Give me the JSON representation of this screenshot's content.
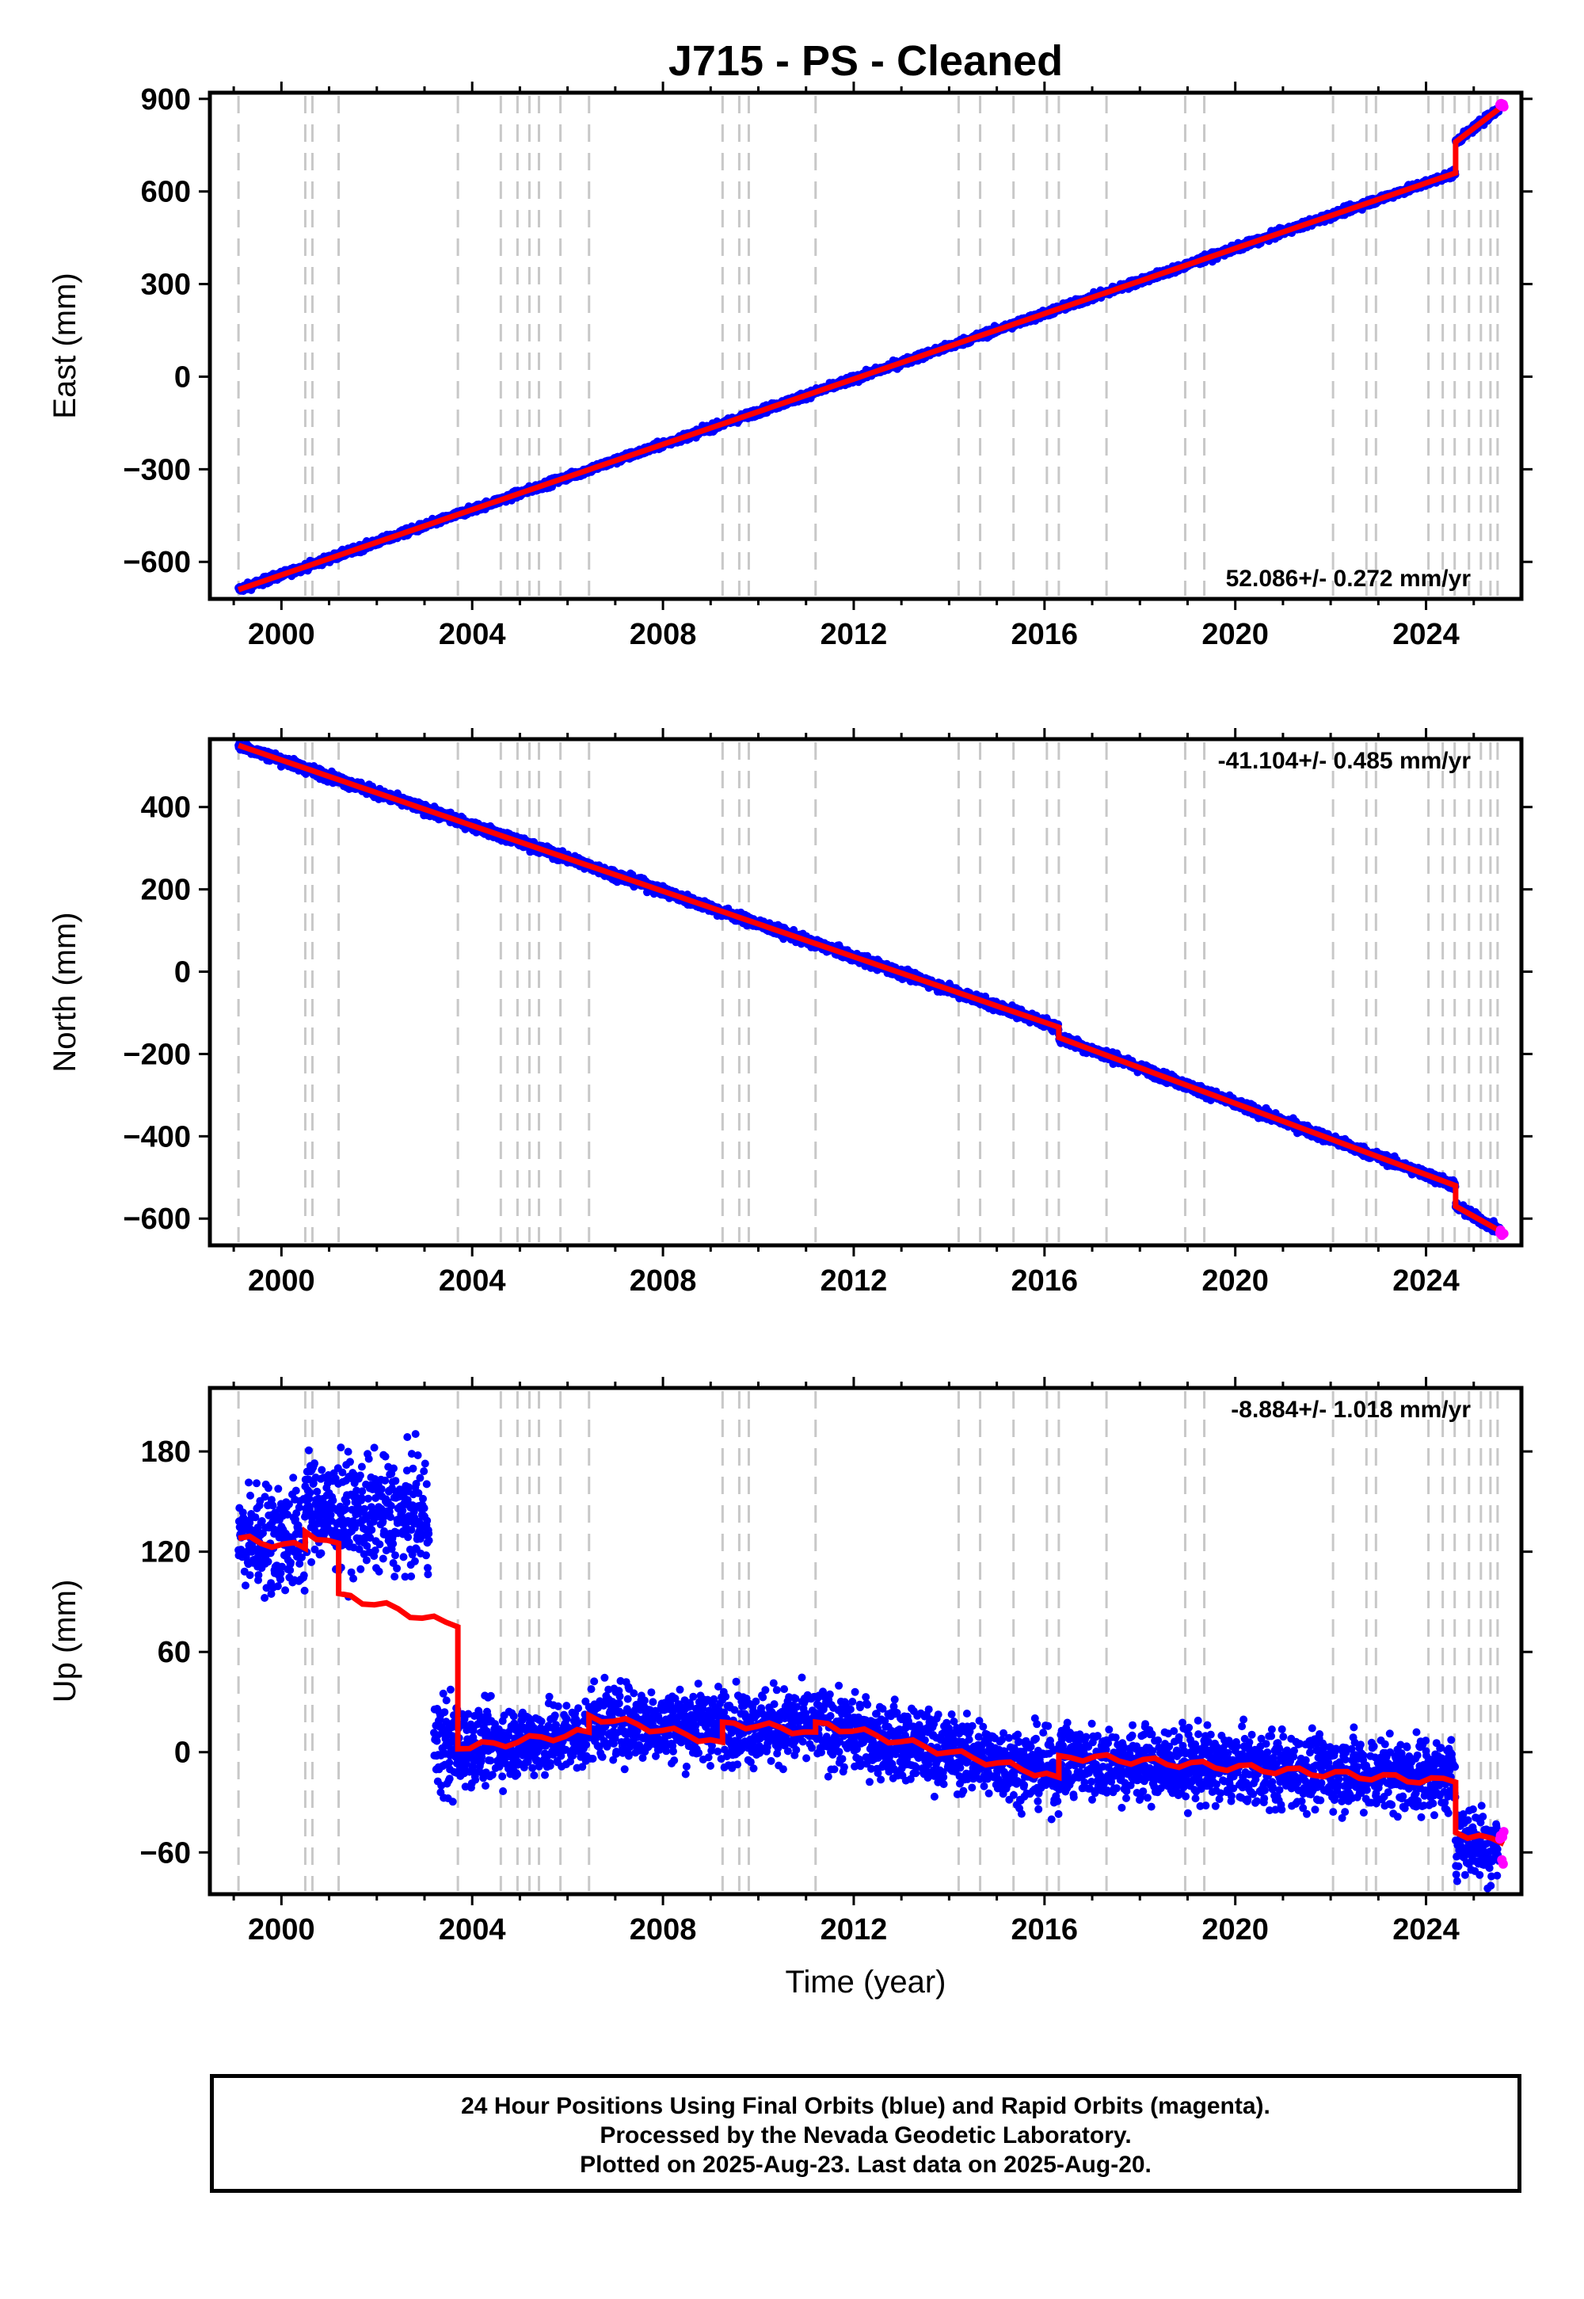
{
  "chart_data": {
    "title": "J715  - PS - Cleaned",
    "xlabel": "Time (year)",
    "xlim": [
      1998.5,
      2026.0
    ],
    "xticks": [
      2000,
      2004,
      2008,
      2012,
      2016,
      2020,
      2024
    ],
    "xtick_labels": [
      "2000",
      "2004",
      "2008",
      "2012",
      "2016",
      "2020",
      "2024"
    ],
    "series_colors": {
      "final_orbits": "#0000ff",
      "rapid_orbits": "#ff00ff",
      "model": "#ff0000",
      "events": "#c8c8c8"
    },
    "event_lines": [
      1999.1,
      2000.5,
      2000.65,
      2001.2,
      2003.7,
      2004.6,
      2004.95,
      2005.2,
      2005.4,
      2005.85,
      2006.45,
      2009.25,
      2009.6,
      2009.8,
      2011.2,
      2014.2,
      2014.65,
      2015.35,
      2016.05,
      2016.3,
      2017.3,
      2018.95,
      2019.35,
      2022.05,
      2022.75,
      2022.95,
      2024.05,
      2024.35,
      2024.6,
      2024.9,
      2025.15,
      2025.35,
      2025.5
    ],
    "panels": [
      {
        "key": "east",
        "type": "scatter",
        "ylabel": "East (mm)",
        "ylim": [
          -720,
          920
        ],
        "yticks": [
          -600,
          -300,
          0,
          300,
          600,
          900
        ],
        "ytick_labels": [
          "−600",
          "−300",
          "0",
          "300",
          "600",
          "900"
        ],
        "rate": "52.086+/- 0.272 mm/yr",
        "rate_position": "bottom-right",
        "model_steps": [
          {
            "start": 1999.1,
            "end": 2024.62,
            "y0": -690,
            "y1": 660
          },
          {
            "start": 2024.62,
            "end": 2025.63,
            "y0": 760,
            "y1": 880
          }
        ],
        "noise": 6,
        "rapid_tail": {
          "start": 2025.55,
          "end": 2025.63
        }
      },
      {
        "key": "north",
        "type": "scatter",
        "ylabel": "North (mm)",
        "ylim": [
          -665,
          565
        ],
        "yticks": [
          -600,
          -400,
          -200,
          0,
          200,
          400
        ],
        "ytick_labels": [
          "−600",
          "−400",
          "−200",
          "0",
          "200",
          "400"
        ],
        "rate": "-41.104+/- 0.485 mm/yr",
        "rate_position": "top-right",
        "model_steps": [
          {
            "start": 1999.1,
            "end": 2016.3,
            "y0": 550,
            "y1": -135
          },
          {
            "start": 2016.3,
            "end": 2024.62,
            "y0": -160,
            "y1": -520
          },
          {
            "start": 2024.62,
            "end": 2025.63,
            "y0": -570,
            "y1": -635
          }
        ],
        "noise": 6,
        "rapid_tail": {
          "start": 2025.55,
          "end": 2025.63
        }
      },
      {
        "key": "up",
        "type": "scatter",
        "ylabel": "Up (mm)",
        "ylim": [
          -85,
          218
        ],
        "yticks": [
          -60,
          0,
          60,
          120,
          180
        ],
        "ytick_labels": [
          "−60",
          "0",
          "60",
          "120",
          "180"
        ],
        "rate": "-8.884+/- 1.018 mm/yr",
        "rate_position": "top-right",
        "model_steps": [
          {
            "start": 1999.1,
            "end": 2000.5,
            "y0": 128,
            "y1": 122
          },
          {
            "start": 2000.5,
            "end": 2001.2,
            "y0": 132,
            "y1": 125
          },
          {
            "start": 2001.2,
            "end": 2003.7,
            "y0": 95,
            "y1": 75
          },
          {
            "start": 2003.7,
            "end": 2006.45,
            "y0": 2,
            "y1": 12
          },
          {
            "start": 2006.45,
            "end": 2009.25,
            "y0": 22,
            "y1": 6
          },
          {
            "start": 2009.25,
            "end": 2011.2,
            "y0": 18,
            "y1": 12
          },
          {
            "start": 2011.2,
            "end": 2016.3,
            "y0": 18,
            "y1": -15
          },
          {
            "start": 2016.3,
            "end": 2024.62,
            "y0": -2,
            "y1": -18
          },
          {
            "start": 2024.62,
            "end": 2025.63,
            "y0": -48,
            "y1": -55
          }
        ],
        "data_segments": [
          {
            "start": 1999.1,
            "end": 2000.5,
            "y0": 128,
            "y1": 128
          },
          {
            "start": 2000.5,
            "end": 2001.2,
            "y0": 150,
            "y1": 140
          },
          {
            "start": 2001.2,
            "end": 2003.1,
            "y0": 142,
            "y1": 142
          },
          {
            "start": 2003.2,
            "end": 2006.45,
            "y0": 2,
            "y1": 10
          },
          {
            "start": 2006.45,
            "end": 2011.2,
            "y0": 18,
            "y1": 15
          },
          {
            "start": 2011.2,
            "end": 2016.3,
            "y0": 15,
            "y1": -12
          },
          {
            "start": 2016.3,
            "end": 2024.62,
            "y0": -5,
            "y1": -15
          },
          {
            "start": 2024.62,
            "end": 2025.55,
            "y0": -50,
            "y1": -58
          }
        ],
        "noise": 11,
        "rapid_tail": {
          "start": 2025.55,
          "end": 2025.63
        }
      }
    ]
  },
  "footer": {
    "line1": "24 Hour Positions Using Final Orbits (blue) and Rapid Orbits (magenta).",
    "line2": "Processed by the Nevada Geodetic Laboratory.",
    "line3": "Plotted on 2025-Aug-23. Last data on 2025-Aug-20."
  }
}
